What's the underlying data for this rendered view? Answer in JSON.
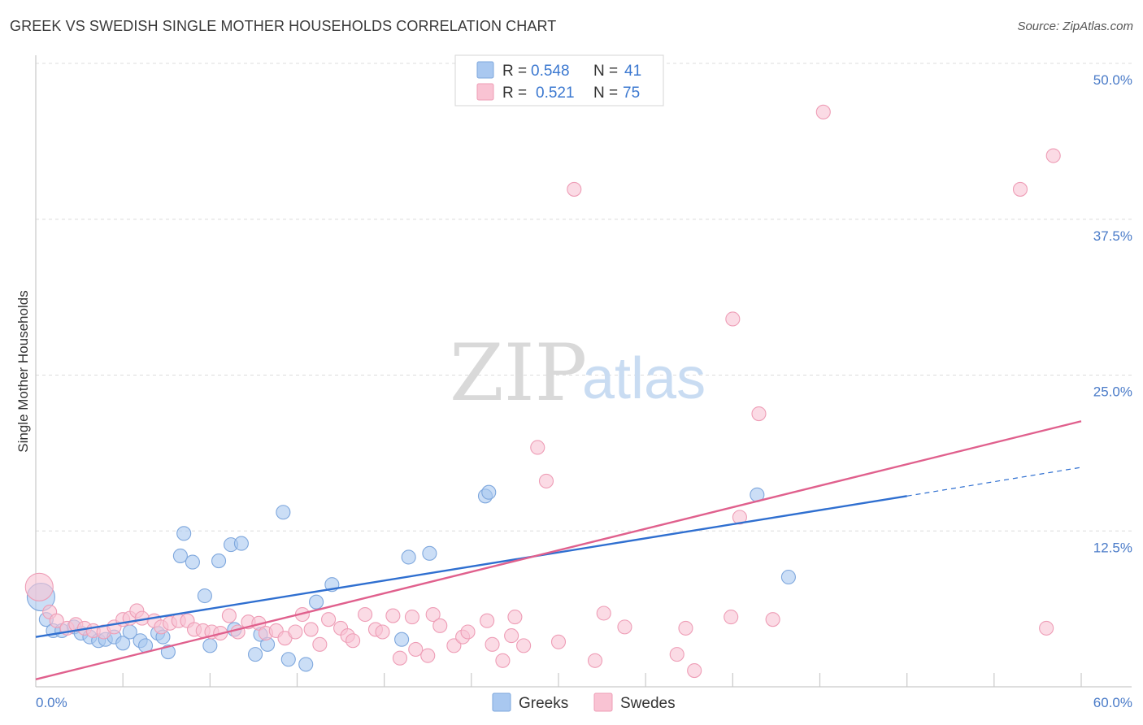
{
  "header": {
    "title": "GREEK VS SWEDISH SINGLE MOTHER HOUSEHOLDS CORRELATION CHART",
    "source": "Source: ZipAtlas.com"
  },
  "legend_box": {
    "rows": [
      {
        "r_label": "R =",
        "r_value": "0.548",
        "n_label": "N =",
        "n_value": "41",
        "color": "#a9c8f0",
        "stroke": "#7ea7dd"
      },
      {
        "r_label": "R =",
        "r_value": "0.521",
        "n_label": "N =",
        "n_value": "75",
        "color": "#f9c3d3",
        "stroke": "#ee9db6"
      }
    ]
  },
  "bottom_legend": {
    "items": [
      {
        "label": "Greeks",
        "color": "#a9c8f0",
        "stroke": "#7ea7dd"
      },
      {
        "label": "Swedes",
        "color": "#f9c3d3",
        "stroke": "#ee9db6"
      }
    ]
  },
  "watermark": {
    "zip": "ZIP",
    "atlas": "atlas"
  },
  "chart_data": {
    "type": "scatter",
    "title": "GREEK VS SWEDISH SINGLE MOTHER HOUSEHOLDS CORRELATION CHART",
    "xlabel": "",
    "ylabel": "Single Mother Households",
    "xlim": [
      0,
      60
    ],
    "ylim": [
      0,
      50
    ],
    "x_tick_labels": [
      "0.0%",
      "60.0%"
    ],
    "y_ticks": [
      12.5,
      25.0,
      37.5,
      50.0
    ],
    "y_tick_labels": [
      "12.5%",
      "25.0%",
      "37.5%",
      "50.0%"
    ],
    "grid": true,
    "legend_placement": "top-center",
    "series": [
      {
        "name": "Greeks",
        "color": "#7ea7dd",
        "fill": "#a9c8f0",
        "R": 0.548,
        "N": 41,
        "trend": {
          "x0": 0,
          "y0": 4.0,
          "x1": 50,
          "y1": 15.3,
          "dash_x1": 60,
          "dash_y1": 17.6,
          "color": "#2f6fd0"
        },
        "points": [
          {
            "x": 0.3,
            "y": 7.2,
            "big": true
          },
          {
            "x": 0.6,
            "y": 5.4
          },
          {
            "x": 1.0,
            "y": 4.5
          },
          {
            "x": 1.5,
            "y": 4.5
          },
          {
            "x": 2.2,
            "y": 4.8
          },
          {
            "x": 2.6,
            "y": 4.3
          },
          {
            "x": 3.1,
            "y": 4.0
          },
          {
            "x": 3.6,
            "y": 3.7
          },
          {
            "x": 4.0,
            "y": 3.8
          },
          {
            "x": 4.5,
            "y": 4.0
          },
          {
            "x": 5.0,
            "y": 3.5
          },
          {
            "x": 5.4,
            "y": 4.4
          },
          {
            "x": 6.0,
            "y": 3.7
          },
          {
            "x": 6.3,
            "y": 3.3
          },
          {
            "x": 7.0,
            "y": 4.3
          },
          {
            "x": 7.3,
            "y": 4.0
          },
          {
            "x": 7.6,
            "y": 2.8
          },
          {
            "x": 8.3,
            "y": 10.5
          },
          {
            "x": 8.5,
            "y": 12.3
          },
          {
            "x": 9.0,
            "y": 10.0
          },
          {
            "x": 9.7,
            "y": 7.3
          },
          {
            "x": 10.0,
            "y": 3.3
          },
          {
            "x": 10.5,
            "y": 10.1
          },
          {
            "x": 11.2,
            "y": 11.4
          },
          {
            "x": 11.4,
            "y": 4.6
          },
          {
            "x": 11.8,
            "y": 11.5
          },
          {
            "x": 12.6,
            "y": 2.6
          },
          {
            "x": 12.9,
            "y": 4.2
          },
          {
            "x": 13.3,
            "y": 3.4
          },
          {
            "x": 14.2,
            "y": 14.0
          },
          {
            "x": 14.5,
            "y": 2.2
          },
          {
            "x": 15.5,
            "y": 1.8
          },
          {
            "x": 16.1,
            "y": 6.8
          },
          {
            "x": 17.0,
            "y": 8.2
          },
          {
            "x": 21.0,
            "y": 3.8
          },
          {
            "x": 21.4,
            "y": 10.4
          },
          {
            "x": 22.6,
            "y": 10.7
          },
          {
            "x": 25.8,
            "y": 15.3
          },
          {
            "x": 26.0,
            "y": 15.6
          },
          {
            "x": 41.4,
            "y": 15.4
          },
          {
            "x": 43.2,
            "y": 8.8
          }
        ]
      },
      {
        "name": "Swedes",
        "color": "#ee9db6",
        "fill": "#f9c3d3",
        "R": 0.521,
        "N": 75,
        "trend": {
          "x0": 0,
          "y0": 0.6,
          "x1": 60,
          "y1": 21.3,
          "color": "#e0608d"
        },
        "points": [
          {
            "x": 0.2,
            "y": 8.0,
            "big": true
          },
          {
            "x": 0.8,
            "y": 6.0
          },
          {
            "x": 1.2,
            "y": 5.3
          },
          {
            "x": 1.8,
            "y": 4.7
          },
          {
            "x": 2.3,
            "y": 5.0
          },
          {
            "x": 2.8,
            "y": 4.7
          },
          {
            "x": 3.3,
            "y": 4.5
          },
          {
            "x": 3.9,
            "y": 4.4
          },
          {
            "x": 4.5,
            "y": 4.8
          },
          {
            "x": 5.0,
            "y": 5.4
          },
          {
            "x": 5.4,
            "y": 5.5
          },
          {
            "x": 5.8,
            "y": 6.1
          },
          {
            "x": 6.1,
            "y": 5.5
          },
          {
            "x": 6.8,
            "y": 5.3
          },
          {
            "x": 7.2,
            "y": 4.8
          },
          {
            "x": 7.7,
            "y": 5.1
          },
          {
            "x": 8.2,
            "y": 5.3
          },
          {
            "x": 8.7,
            "y": 5.3
          },
          {
            "x": 9.1,
            "y": 4.6
          },
          {
            "x": 9.6,
            "y": 4.5
          },
          {
            "x": 10.1,
            "y": 4.4
          },
          {
            "x": 10.6,
            "y": 4.3
          },
          {
            "x": 11.1,
            "y": 5.7
          },
          {
            "x": 11.6,
            "y": 4.4
          },
          {
            "x": 12.2,
            "y": 5.2
          },
          {
            "x": 12.8,
            "y": 5.1
          },
          {
            "x": 13.2,
            "y": 4.3
          },
          {
            "x": 13.8,
            "y": 4.5
          },
          {
            "x": 14.3,
            "y": 3.9
          },
          {
            "x": 14.9,
            "y": 4.4
          },
          {
            "x": 15.3,
            "y": 5.8
          },
          {
            "x": 15.8,
            "y": 4.6
          },
          {
            "x": 16.3,
            "y": 3.4
          },
          {
            "x": 16.8,
            "y": 5.4
          },
          {
            "x": 17.5,
            "y": 4.7
          },
          {
            "x": 17.9,
            "y": 4.1
          },
          {
            "x": 18.2,
            "y": 3.7
          },
          {
            "x": 18.9,
            "y": 5.8
          },
          {
            "x": 19.5,
            "y": 4.6
          },
          {
            "x": 19.9,
            "y": 4.4
          },
          {
            "x": 20.5,
            "y": 5.7
          },
          {
            "x": 20.9,
            "y": 2.3
          },
          {
            "x": 21.6,
            "y": 5.6
          },
          {
            "x": 21.8,
            "y": 3.0
          },
          {
            "x": 22.5,
            "y": 2.5
          },
          {
            "x": 22.8,
            "y": 5.8
          },
          {
            "x": 23.2,
            "y": 4.9
          },
          {
            "x": 24.0,
            "y": 3.3
          },
          {
            "x": 24.5,
            "y": 4.0
          },
          {
            "x": 24.8,
            "y": 4.4
          },
          {
            "x": 25.9,
            "y": 5.3
          },
          {
            "x": 26.2,
            "y": 3.4
          },
          {
            "x": 26.8,
            "y": 2.1
          },
          {
            "x": 27.3,
            "y": 4.1
          },
          {
            "x": 27.5,
            "y": 5.6
          },
          {
            "x": 28.0,
            "y": 3.3
          },
          {
            "x": 28.8,
            "y": 19.2
          },
          {
            "x": 29.3,
            "y": 16.5
          },
          {
            "x": 30.0,
            "y": 3.6
          },
          {
            "x": 30.9,
            "y": 39.9
          },
          {
            "x": 32.1,
            "y": 2.1
          },
          {
            "x": 32.6,
            "y": 5.9
          },
          {
            "x": 33.8,
            "y": 4.8
          },
          {
            "x": 36.8,
            "y": 2.6
          },
          {
            "x": 37.3,
            "y": 4.7
          },
          {
            "x": 37.8,
            "y": 1.3
          },
          {
            "x": 39.9,
            "y": 5.6
          },
          {
            "x": 40.0,
            "y": 29.5
          },
          {
            "x": 40.4,
            "y": 13.6
          },
          {
            "x": 41.5,
            "y": 21.9
          },
          {
            "x": 42.3,
            "y": 5.4
          },
          {
            "x": 45.2,
            "y": 46.1
          },
          {
            "x": 56.5,
            "y": 39.9
          },
          {
            "x": 58.0,
            "y": 4.7
          },
          {
            "x": 58.4,
            "y": 42.6
          }
        ]
      }
    ]
  }
}
